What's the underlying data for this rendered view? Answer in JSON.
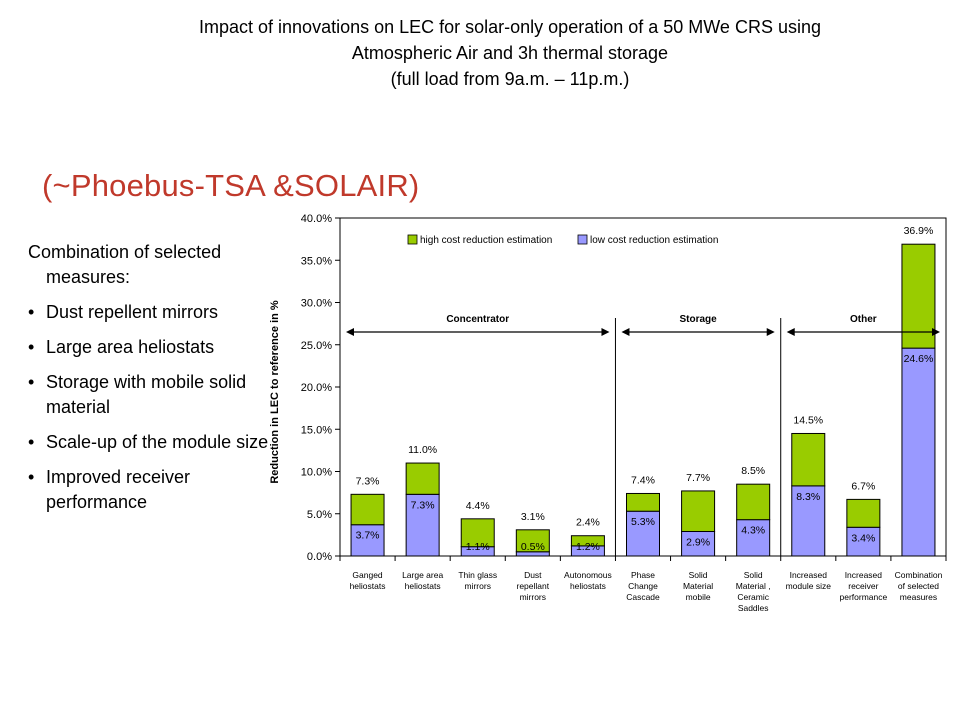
{
  "slide": {
    "title_lines": [
      "Impact of innovations on LEC for solar-only operation of a 50 MWe CRS using",
      "Atmospheric Air and 3h thermal storage",
      "(full load from 9a.m. – 11p.m.)"
    ],
    "subtitle": "(~Phoebus-TSA  &SOLAIR)",
    "intro": "Combination of selected measures:",
    "bullet_glyph": "•",
    "bullets": [
      "Dust repellent mirrors",
      "Large area heliostats",
      "Storage with mobile solid material",
      "Scale-up of the module size",
      "Improved receiver performance"
    ]
  },
  "chart_data": {
    "type": "bar",
    "stacked": true,
    "ylabel": "Reduction in LEC to reference in %",
    "ylim": [
      0,
      40
    ],
    "yticks": [
      "0.0%",
      "5.0%",
      "10.0%",
      "15.0%",
      "20.0%",
      "25.0%",
      "30.0%",
      "35.0%",
      "40.0%"
    ],
    "grid": false,
    "legend_position": "top",
    "categories": [
      [
        "Ganged",
        "heliostats"
      ],
      [
        "Large area",
        "heliostats"
      ],
      [
        "Thin glass",
        "mirrors"
      ],
      [
        "Dust",
        "repellant",
        "mirrors"
      ],
      [
        "Autonomous",
        "heliostats"
      ],
      [
        "Phase",
        "Change",
        "Cascade"
      ],
      [
        "Solid",
        "Material",
        "mobile"
      ],
      [
        "Solid",
        "Material ,",
        "Ceramic",
        "Saddles"
      ],
      [
        "Increased",
        "module size"
      ],
      [
        "Increased",
        "receiver",
        "performance"
      ],
      [
        "Combination",
        "of selected",
        "measures"
      ]
    ],
    "series": [
      {
        "name": "low cost reduction estimation",
        "color": "#9999ff",
        "values": [
          3.7,
          7.3,
          1.1,
          0.5,
          1.2,
          5.3,
          2.9,
          4.3,
          8.3,
          3.4,
          24.6
        ],
        "labels": [
          "3.7%",
          "7.3%",
          "1.1%",
          "0.5%",
          "1.2%",
          "5.3%",
          "2.9%",
          "4.3%",
          "8.3%",
          "3.4%",
          "24.6%"
        ]
      },
      {
        "name": "high cost reduction estimation",
        "color": "#99cc00",
        "values": [
          3.6,
          3.7,
          3.3,
          2.6,
          1.2,
          2.1,
          4.8,
          4.2,
          6.2,
          3.3,
          12.3
        ],
        "total_labels": [
          "7.3%",
          "11.0%",
          "4.4%",
          "3.1%",
          "2.4%",
          "7.4%",
          "7.7%",
          "8.5%",
          "14.5%",
          "6.7%",
          "36.9%"
        ]
      }
    ],
    "groups": [
      {
        "label": "Concentrator",
        "from": 0,
        "to": 4
      },
      {
        "label": "Storage",
        "from": 5,
        "to": 7
      },
      {
        "label": "Other",
        "from": 8,
        "to": 10
      }
    ]
  }
}
